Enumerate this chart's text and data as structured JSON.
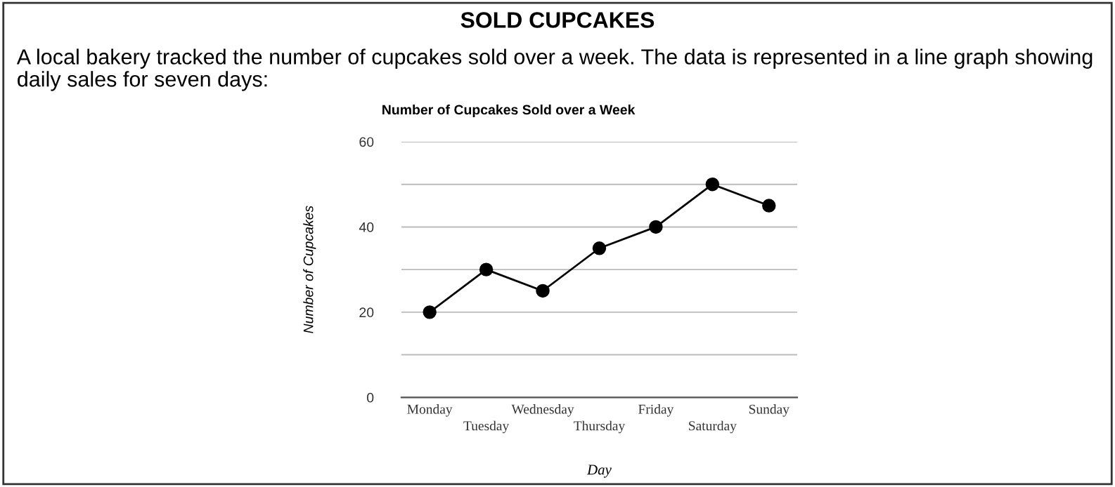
{
  "chart_data": {
    "type": "line",
    "title": "Number of Cupcakes Sold over a Week",
    "xlabel": "Day",
    "ylabel": "Number of Cupcakes",
    "annotations": [
      "SOLD CUPCAKES",
      "A local bakery tracked the number of cupcakes sold over a week. The data is represented in a line graph showing daily sales for seven days:"
    ],
    "categories": [
      "Monday",
      "Tuesday",
      "Wednesday",
      "Thursday",
      "Friday",
      "Saturday",
      "Sunday"
    ],
    "series": [
      {
        "color": "#000000",
        "values": [
          20,
          30,
          25,
          35,
          40,
          50,
          45
        ]
      }
    ],
    "ylim": [
      0,
      60
    ],
    "yticks": [
      0,
      {
        "value": 10,
        "label": null
      },
      20,
      {
        "value": 30,
        "label": null
      },
      40,
      {
        "value": 50,
        "label": null
      },
      60
    ],
    "grid": "y",
    "marker": "circle",
    "line_style": "solid",
    "legend": false
  }
}
